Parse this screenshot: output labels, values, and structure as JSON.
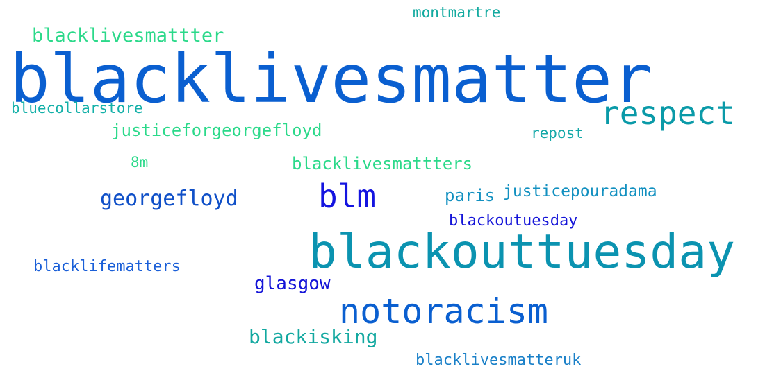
{
  "words": [
    {
      "text": "blacklivesmatter",
      "color": "#0a5fd0"
    },
    {
      "text": "blackouttuesday",
      "color": "#0b93b0"
    },
    {
      "text": "notoracism",
      "color": "#0a5fd0"
    },
    {
      "text": "respect",
      "color": "#0a9aa8"
    },
    {
      "text": "blm",
      "color": "#1414e0"
    },
    {
      "text": "georgefloyd",
      "color": "#1050c8"
    },
    {
      "text": "blacklivesmattter",
      "color": "#2bd98a"
    },
    {
      "text": "blacklivesmattters",
      "color": "#2bd98a"
    },
    {
      "text": "justiceforgeorgefloyd",
      "color": "#2bd98a"
    },
    {
      "text": "montmartre",
      "color": "#13aaa0"
    },
    {
      "text": "bluecollarstore",
      "color": "#13b0a8"
    },
    {
      "text": "repost",
      "color": "#13a8a8"
    },
    {
      "text": "8m",
      "color": "#2bd98a"
    },
    {
      "text": "paris",
      "color": "#1290c0"
    },
    {
      "text": "justicepouradama",
      "color": "#1290c0"
    },
    {
      "text": "blackoutuesday",
      "color": "#1414d8"
    },
    {
      "text": "blacklifematters",
      "color": "#1a5fd8"
    },
    {
      "text": "glasgow",
      "color": "#1414d8"
    },
    {
      "text": "blackisking",
      "color": "#12a8a0"
    },
    {
      "text": "blacklivesmatteruk",
      "color": "#1a80c8"
    }
  ]
}
